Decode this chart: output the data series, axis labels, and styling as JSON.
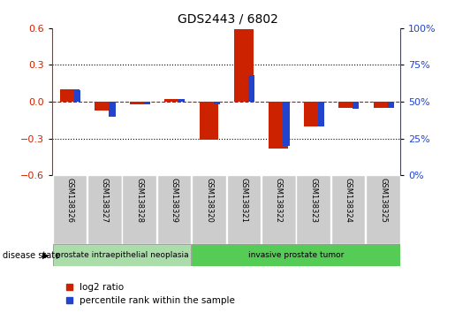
{
  "title": "GDS2443 / 6802",
  "samples": [
    "GSM138326",
    "GSM138327",
    "GSM138328",
    "GSM138329",
    "GSM138320",
    "GSM138321",
    "GSM138322",
    "GSM138323",
    "GSM138324",
    "GSM138325"
  ],
  "log2_ratio": [
    0.1,
    -0.07,
    -0.02,
    0.02,
    -0.31,
    0.59,
    -0.38,
    -0.2,
    -0.05,
    -0.05
  ],
  "percentile_rank": [
    58,
    40,
    48,
    52,
    48,
    68,
    20,
    33,
    45,
    46
  ],
  "ylim_left": [
    -0.6,
    0.6
  ],
  "ylim_right": [
    0,
    100
  ],
  "yticks_left": [
    -0.6,
    -0.3,
    0.0,
    0.3,
    0.6
  ],
  "yticks_right": [
    0,
    25,
    50,
    75,
    100
  ],
  "red_color": "#cc2200",
  "blue_color": "#2244cc",
  "zero_line_color": "#dd0000",
  "tick_label_color_left": "#cc2200",
  "tick_label_color_right": "#2244cc",
  "disease_groups": [
    {
      "label": "prostate intraepithelial neoplasia",
      "start": 0,
      "end": 4,
      "color": "#aaddaa"
    },
    {
      "label": "invasive prostate tumor",
      "start": 4,
      "end": 10,
      "color": "#55cc55"
    }
  ],
  "legend_items": [
    {
      "label": "log2 ratio",
      "color": "#cc2200"
    },
    {
      "label": "percentile rank within the sample",
      "color": "#2244cc"
    }
  ],
  "label_disease_state": "disease state"
}
